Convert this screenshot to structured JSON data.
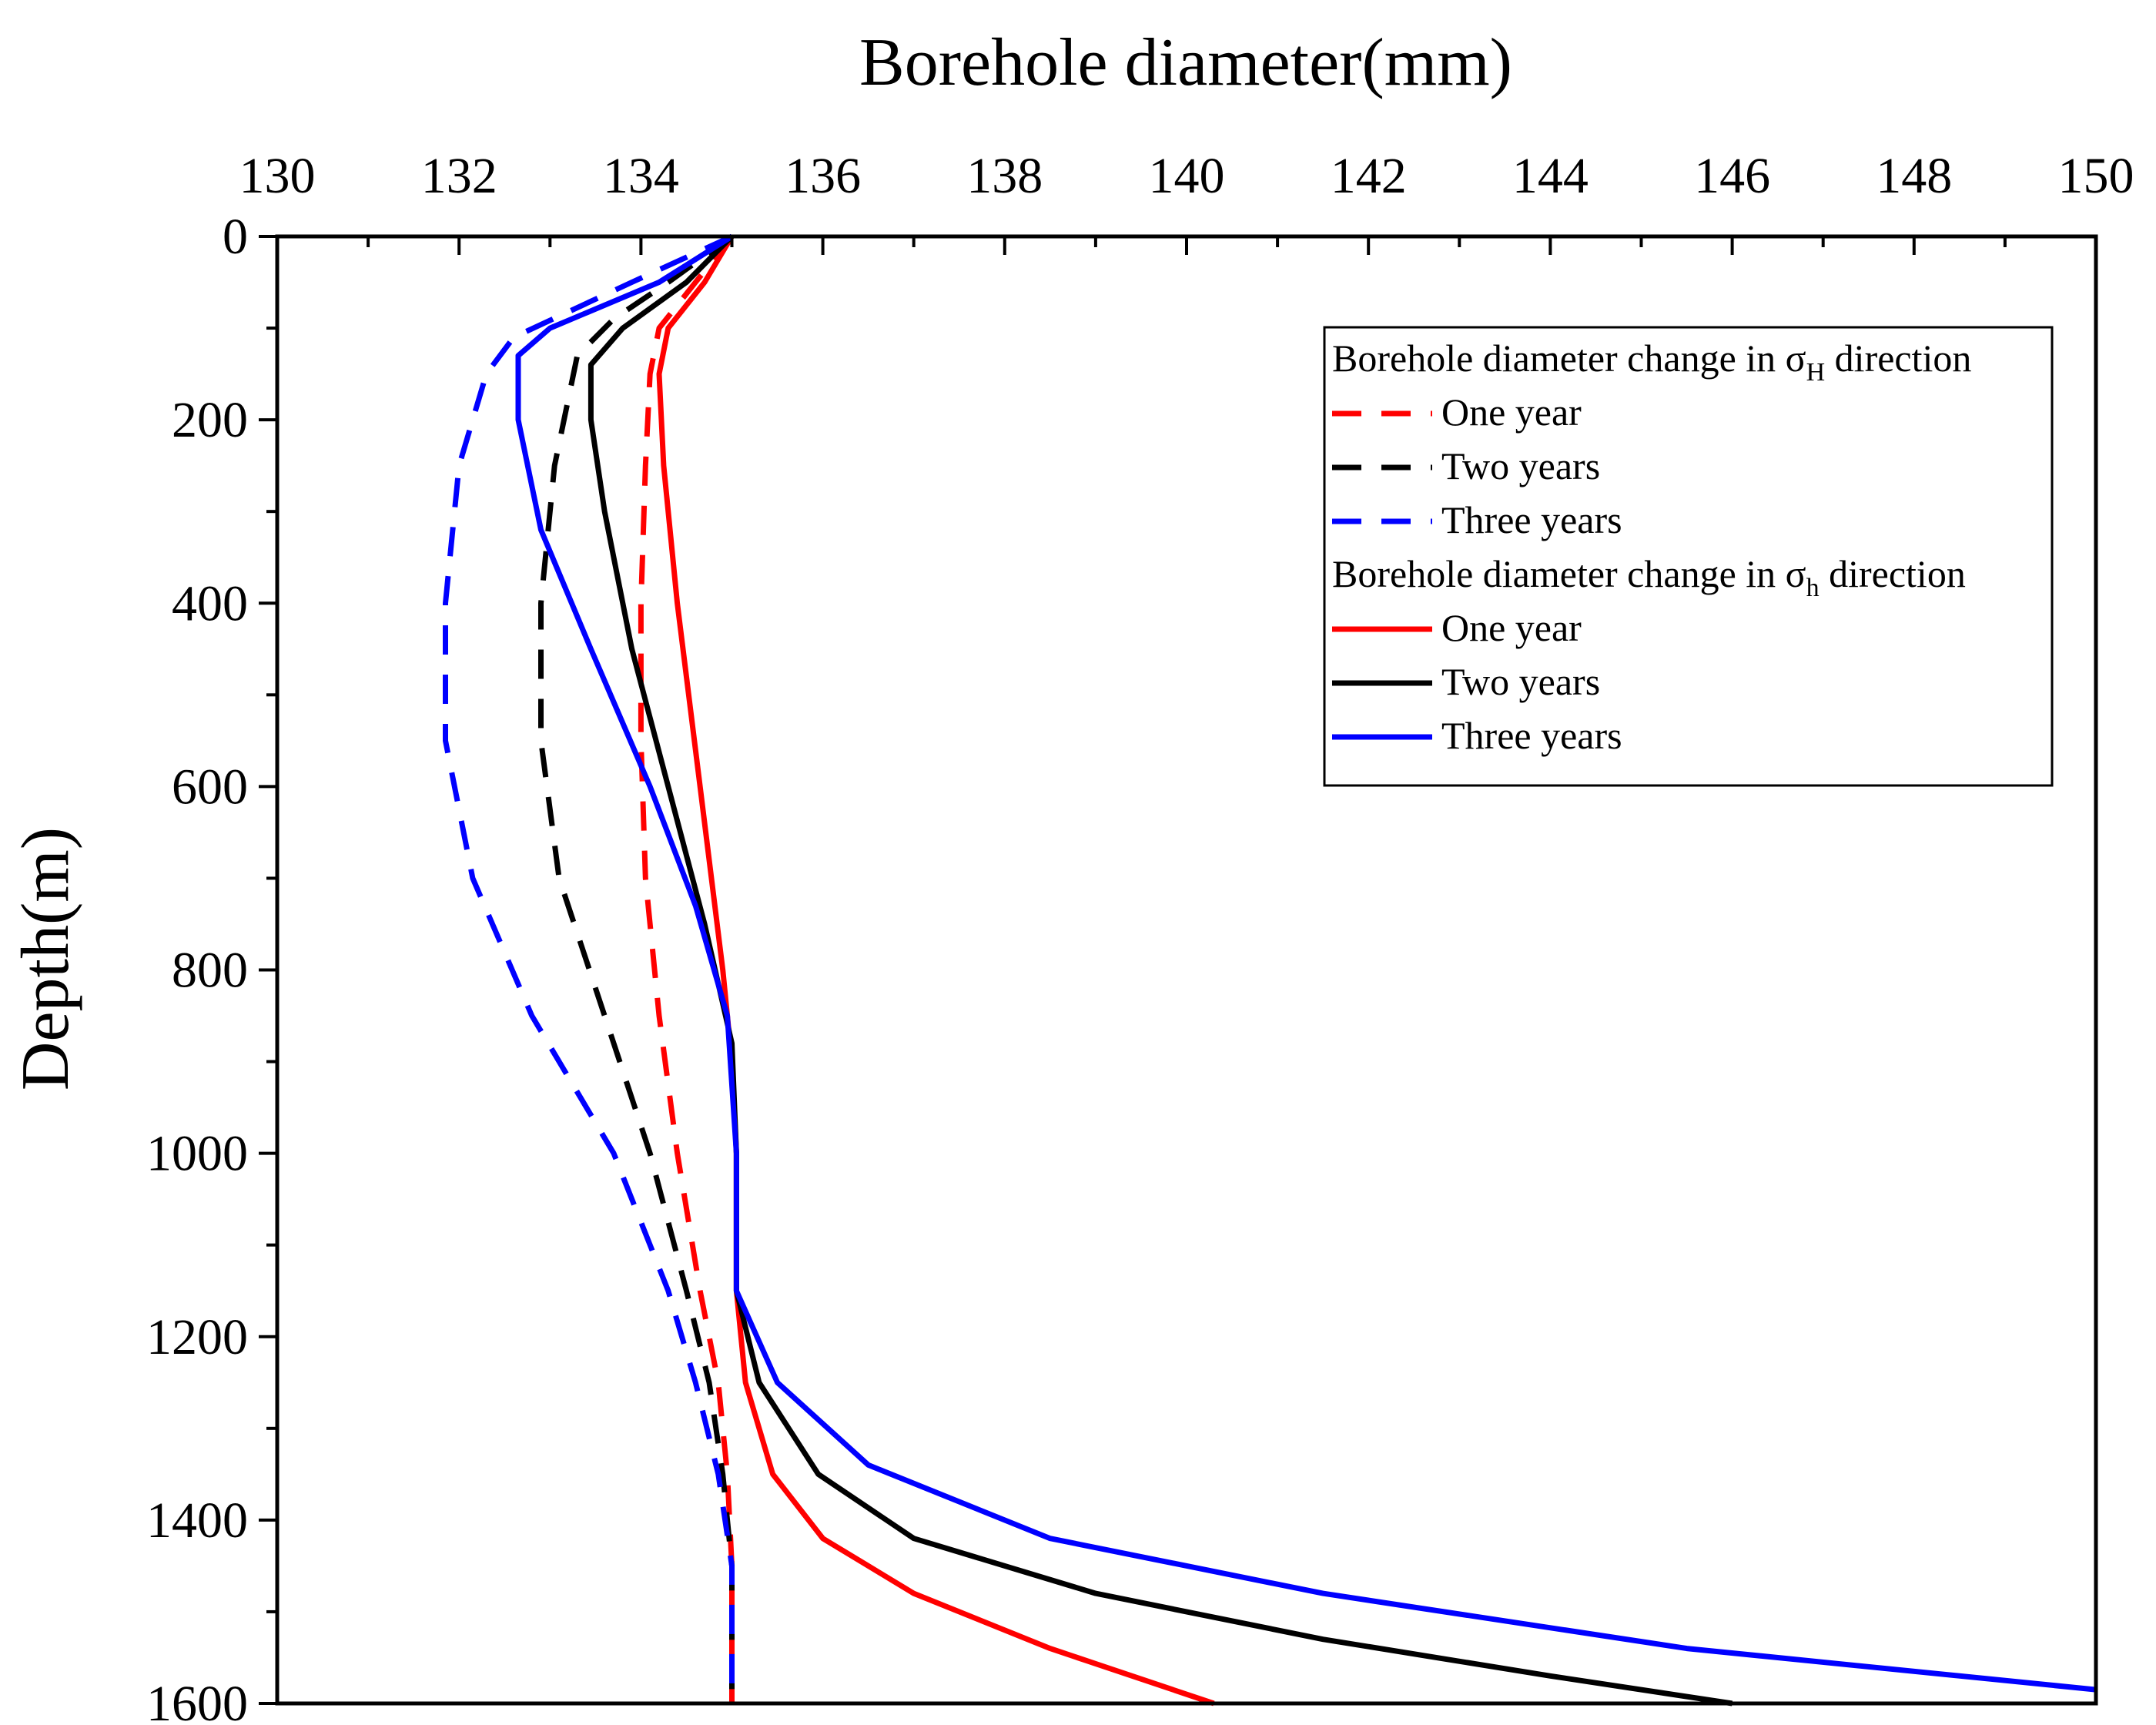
{
  "chart_data": {
    "type": "line",
    "xlabel": "Borehole diameter(mm)",
    "ylabel": "Depth(m)",
    "xlim": [
      130,
      150
    ],
    "ylim": [
      0,
      1600
    ],
    "y_inverted": true,
    "x_axis_position": "top",
    "x_ticks": [
      130,
      132,
      134,
      136,
      138,
      140,
      142,
      144,
      146,
      148,
      150
    ],
    "y_ticks": [
      0,
      200,
      400,
      600,
      800,
      1000,
      1200,
      1400,
      1600
    ],
    "x_tick_labels": [
      "130",
      "132",
      "134",
      "136",
      "138",
      "140",
      "142",
      "144",
      "146",
      "148",
      "150"
    ],
    "y_tick_labels": [
      "0",
      "200",
      "400",
      "600",
      "800",
      "1000",
      "1200",
      "1400",
      "1600"
    ],
    "grid": false,
    "legend_position": "top-right",
    "legend_groups": [
      {
        "title_main": "Borehole diameter change in σ",
        "title_sub": "H",
        "title_tail": " direction",
        "series": [
          0,
          1,
          2
        ]
      },
      {
        "title_main": "Borehole diameter change in σ",
        "title_sub": "h",
        "title_tail": " direction",
        "series": [
          3,
          4,
          5
        ]
      }
    ],
    "series": [
      {
        "name": "One year",
        "group": "σH",
        "color": "#ff0000",
        "style": "dashed",
        "points": [
          [
            135.0,
            0
          ],
          [
            134.6,
            50
          ],
          [
            134.2,
            100
          ],
          [
            134.1,
            150
          ],
          [
            134.05,
            250
          ],
          [
            134.0,
            400
          ],
          [
            134.0,
            550
          ],
          [
            134.05,
            700
          ],
          [
            134.2,
            850
          ],
          [
            134.4,
            1000
          ],
          [
            134.65,
            1150
          ],
          [
            134.85,
            1250
          ],
          [
            134.95,
            1350
          ],
          [
            135.0,
            1450
          ],
          [
            135.0,
            1600
          ]
        ]
      },
      {
        "name": "Two years",
        "group": "σH",
        "color": "#000000",
        "style": "dashed",
        "points": [
          [
            135.0,
            0
          ],
          [
            134.3,
            50
          ],
          [
            133.7,
            90
          ],
          [
            133.3,
            130
          ],
          [
            133.05,
            250
          ],
          [
            132.9,
            400
          ],
          [
            132.9,
            550
          ],
          [
            133.1,
            700
          ],
          [
            133.6,
            850
          ],
          [
            134.1,
            1000
          ],
          [
            134.5,
            1150
          ],
          [
            134.75,
            1250
          ],
          [
            134.9,
            1350
          ],
          [
            135.0,
            1450
          ],
          [
            135.0,
            1600
          ]
        ]
      },
      {
        "name": "Three years",
        "group": "σH",
        "color": "#0000ff",
        "style": "dashed",
        "points": [
          [
            135.0,
            0
          ],
          [
            133.9,
            50
          ],
          [
            132.6,
            110
          ],
          [
            132.3,
            150
          ],
          [
            132.0,
            250
          ],
          [
            131.85,
            400
          ],
          [
            131.85,
            550
          ],
          [
            132.15,
            700
          ],
          [
            132.8,
            850
          ],
          [
            133.7,
            1000
          ],
          [
            134.3,
            1150
          ],
          [
            134.6,
            1250
          ],
          [
            134.85,
            1350
          ],
          [
            135.0,
            1450
          ],
          [
            135.0,
            1600
          ]
        ]
      },
      {
        "name": "One year",
        "group": "σh",
        "color": "#ff0000",
        "style": "solid",
        "points": [
          [
            135.0,
            0
          ],
          [
            134.7,
            50
          ],
          [
            134.3,
            100
          ],
          [
            134.2,
            150
          ],
          [
            134.25,
            250
          ],
          [
            134.4,
            400
          ],
          [
            134.65,
            600
          ],
          [
            134.9,
            800
          ],
          [
            135.0,
            900
          ],
          [
            135.05,
            1000
          ],
          [
            135.05,
            1150
          ],
          [
            135.15,
            1250
          ],
          [
            135.45,
            1350
          ],
          [
            136.0,
            1420
          ],
          [
            137.0,
            1480
          ],
          [
            138.5,
            1540
          ],
          [
            140.3,
            1600
          ]
        ]
      },
      {
        "name": "Two years",
        "group": "σh",
        "color": "#000000",
        "style": "solid",
        "points": [
          [
            135.0,
            0
          ],
          [
            134.5,
            50
          ],
          [
            133.8,
            100
          ],
          [
            133.45,
            140
          ],
          [
            133.45,
            200
          ],
          [
            133.6,
            300
          ],
          [
            133.9,
            450
          ],
          [
            134.3,
            600
          ],
          [
            134.7,
            750
          ],
          [
            135.0,
            880
          ],
          [
            135.05,
            1000
          ],
          [
            135.05,
            1150
          ],
          [
            135.3,
            1250
          ],
          [
            135.95,
            1350
          ],
          [
            137.0,
            1420
          ],
          [
            139.0,
            1480
          ],
          [
            141.5,
            1530
          ],
          [
            144.0,
            1570
          ],
          [
            146.0,
            1600
          ]
        ]
      },
      {
        "name": "Three years",
        "group": "σh",
        "color": "#0000ff",
        "style": "solid",
        "points": [
          [
            135.0,
            0
          ],
          [
            134.2,
            50
          ],
          [
            133.0,
            100
          ],
          [
            132.65,
            130
          ],
          [
            132.65,
            200
          ],
          [
            132.9,
            320
          ],
          [
            133.45,
            450
          ],
          [
            134.1,
            600
          ],
          [
            134.6,
            730
          ],
          [
            134.95,
            850
          ],
          [
            135.05,
            1000
          ],
          [
            135.05,
            1150
          ],
          [
            135.5,
            1250
          ],
          [
            136.5,
            1340
          ],
          [
            138.5,
            1420
          ],
          [
            141.5,
            1480
          ],
          [
            145.5,
            1540
          ],
          [
            150.0,
            1585
          ]
        ]
      }
    ]
  }
}
